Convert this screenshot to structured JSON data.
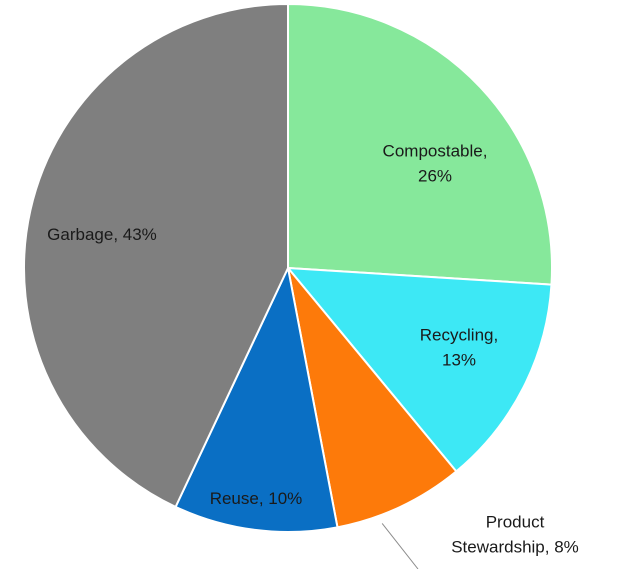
{
  "chart_data": {
    "type": "pie",
    "title": "",
    "slices": [
      {
        "label": "Compostable",
        "value": 26,
        "color": "#86e89b",
        "text_lines": [
          "Compostable,",
          "26%"
        ]
      },
      {
        "label": "Recycling",
        "value": 13,
        "color": "#3de8f5",
        "text_lines": [
          "Recycling,",
          "13%"
        ]
      },
      {
        "label": "Product Stewardship",
        "value": 8,
        "color": "#fd7a0a",
        "text_lines": [
          "Product",
          "Stewardship, 8%"
        ]
      },
      {
        "label": "Reuse",
        "value": 10,
        "color": "#0a6fc4",
        "text_lines": [
          "Reuse, 10%"
        ]
      },
      {
        "label": "Garbage",
        "value": 43,
        "color": "#7f7f7f",
        "text_lines": [
          "Garbage, 43%"
        ]
      }
    ],
    "start_angle_deg": 0,
    "direction": "clockwise",
    "legend": "none",
    "label_style": "category name and percentage"
  }
}
